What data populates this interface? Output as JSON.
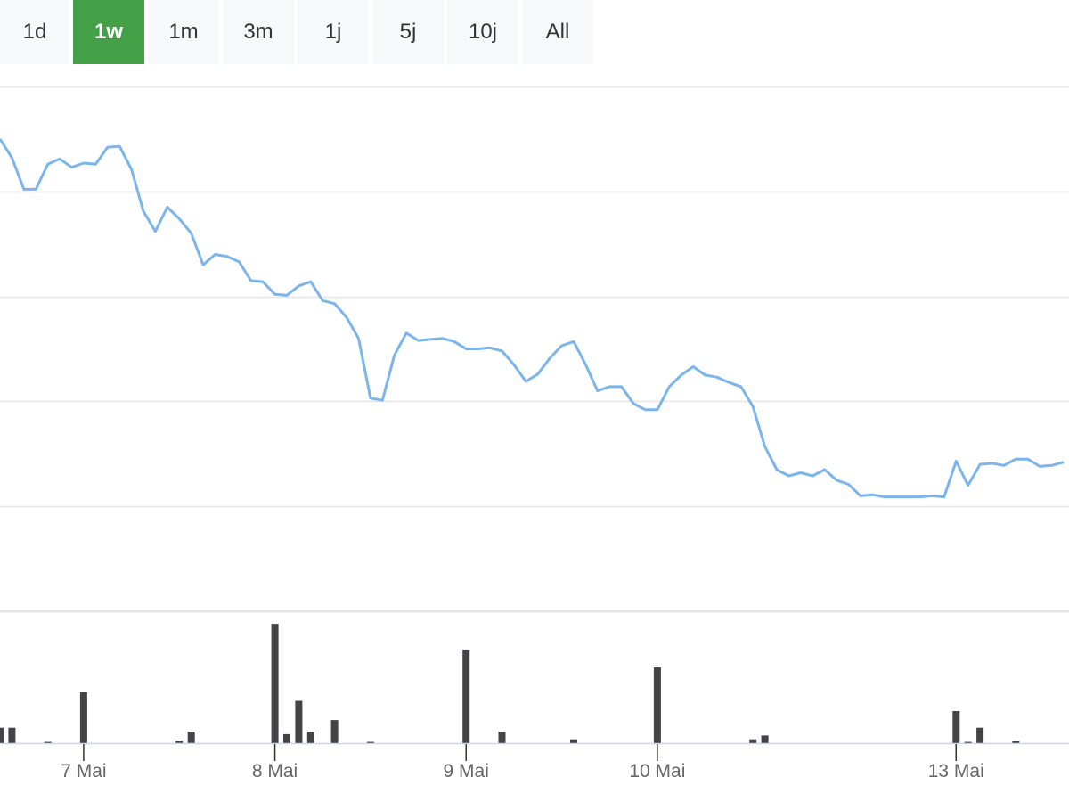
{
  "range_selector": {
    "options": [
      "1d",
      "1w",
      "1m",
      "3m",
      "1j",
      "5j",
      "10j",
      "All"
    ],
    "selected": "1w"
  },
  "colors": {
    "line": "#7cb5ec",
    "bars": "#434348",
    "active_button": "#43a047",
    "button": "#f7f8fa",
    "grid": "#e6e6e6",
    "axis": "#ccd6eb"
  },
  "chart_data": [
    {
      "type": "line",
      "title": "",
      "xlabel": "",
      "ylabel": "",
      "y_tick_labels_shown": false,
      "grid": true,
      "x_ticks": [
        {
          "label": "7 Mai",
          "index": 7
        },
        {
          "label": "8 Mai",
          "index": 23
        },
        {
          "label": "9 Mai",
          "index": 39
        },
        {
          "label": "10 Mai",
          "index": 55
        },
        {
          "label": "13 Mai",
          "index": 80
        }
      ],
      "x_range": [
        0,
        89
      ],
      "ylim": [
        0,
        5
      ],
      "y_gridlines": [
        1,
        2,
        3,
        4,
        5
      ],
      "series": [
        {
          "values": [
            4.5,
            4.32,
            4.02,
            4.02,
            4.26,
            4.31,
            4.23,
            4.27,
            4.26,
            4.42,
            4.43,
            4.21,
            3.81,
            3.62,
            3.85,
            3.74,
            3.6,
            3.3,
            3.4,
            3.38,
            3.33,
            3.15,
            3.14,
            3.02,
            3.01,
            3.1,
            3.14,
            2.96,
            2.93,
            2.8,
            2.6,
            2.03,
            2.01,
            2.44,
            2.65,
            2.58,
            2.59,
            2.6,
            2.57,
            2.5,
            2.5,
            2.51,
            2.48,
            2.35,
            2.19,
            2.26,
            2.41,
            2.53,
            2.57,
            2.35,
            2.1,
            2.14,
            2.14,
            1.98,
            1.92,
            1.92,
            2.14,
            2.25,
            2.33,
            2.25,
            2.23,
            2.18,
            2.14,
            1.95,
            1.57,
            1.35,
            1.29,
            1.32,
            1.29,
            1.35,
            1.25,
            1.21,
            1.1,
            1.11,
            1.09,
            1.09,
            1.09,
            1.09,
            1.1,
            1.09,
            1.43,
            1.2,
            1.4,
            1.41,
            1.39,
            1.45,
            1.45,
            1.38,
            1.39,
            1.42
          ]
        }
      ]
    },
    {
      "type": "bar",
      "title": "",
      "xlabel": "",
      "ylabel": "",
      "y_tick_labels_shown": false,
      "x_range": [
        0,
        89
      ],
      "ylim": [
        0,
        100
      ],
      "bars": [
        {
          "index": 0,
          "value": 12
        },
        {
          "index": 1,
          "value": 12
        },
        {
          "index": 4,
          "value": 1
        },
        {
          "index": 7,
          "value": 40
        },
        {
          "index": 15,
          "value": 2
        },
        {
          "index": 16,
          "value": 9
        },
        {
          "index": 23,
          "value": 93
        },
        {
          "index": 24,
          "value": 7
        },
        {
          "index": 25,
          "value": 33
        },
        {
          "index": 26,
          "value": 9
        },
        {
          "index": 28,
          "value": 18
        },
        {
          "index": 31,
          "value": 1
        },
        {
          "index": 39,
          "value": 73
        },
        {
          "index": 42,
          "value": 9
        },
        {
          "index": 48,
          "value": 3
        },
        {
          "index": 55,
          "value": 59
        },
        {
          "index": 63,
          "value": 3
        },
        {
          "index": 64,
          "value": 6
        },
        {
          "index": 80,
          "value": 25
        },
        {
          "index": 81,
          "value": 1
        },
        {
          "index": 82,
          "value": 12
        },
        {
          "index": 85,
          "value": 2
        }
      ]
    }
  ]
}
